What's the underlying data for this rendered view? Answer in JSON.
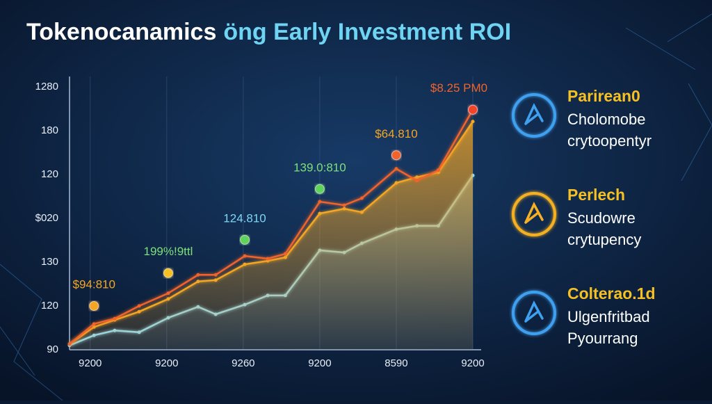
{
  "chart_data": {
    "type": "line",
    "title_parts": [
      "Tokenocanamics",
      "öng Early Investment ROI"
    ],
    "x": [
      0.73,
      1.05,
      1.32,
      1.64,
      2.02,
      2.41,
      2.64,
      3.02,
      3.32,
      3.55,
      4.0,
      4.32,
      4.55,
      5.0,
      5.27,
      5.55,
      6.0
    ],
    "series": [
      {
        "color": "#f0642c",
        "values": [
          0.13,
          0.59,
          0.71,
          1.0,
          1.29,
          1.71,
          1.71,
          2.14,
          2.08,
          2.19,
          3.38,
          3.3,
          3.46,
          4.13,
          3.86,
          4.1,
          5.48
        ]
      },
      {
        "color": "#f5a623",
        "area": true,
        "values": [
          0.13,
          0.52,
          0.68,
          0.87,
          1.16,
          1.56,
          1.59,
          1.95,
          2.03,
          2.11,
          3.11,
          3.22,
          3.14,
          3.81,
          3.94,
          4.05,
          5.21
        ]
      },
      {
        "color": "#8fdcf7",
        "area": true,
        "values": [
          0.1,
          0.33,
          0.44,
          0.4,
          0.73,
          0.98,
          0.81,
          1.03,
          1.24,
          1.24,
          2.27,
          2.22,
          2.43,
          2.75,
          2.83,
          2.83,
          3.98
        ]
      }
    ],
    "xlim": [
      0.73,
      6.0
    ],
    "ylim": [
      0,
      6
    ],
    "xticks": [
      {
        "value": 1,
        "label": "9200"
      },
      {
        "value": 2,
        "label": "9200"
      },
      {
        "value": 3,
        "label": "9260"
      },
      {
        "value": 4,
        "label": "9200"
      },
      {
        "value": 5,
        "label": "8590"
      },
      {
        "value": 6,
        "label": "9200"
      }
    ],
    "yticks": [
      {
        "value": 0,
        "label": "90"
      },
      {
        "value": 1,
        "label": "120"
      },
      {
        "value": 2,
        "label": "130"
      },
      {
        "value": 3,
        "label": "$020"
      },
      {
        "value": 4,
        "label": "120"
      },
      {
        "value": 5,
        "label": "180"
      },
      {
        "value": 6,
        "label": "1280"
      }
    ],
    "grid": "vertical",
    "annotations": [
      {
        "text": "$94:810",
        "x": 1.05,
        "y": 1.0,
        "color": "#f5a623",
        "dot": "#f5a623"
      },
      {
        "text": "199%!9ttl",
        "x": 2.02,
        "y": 1.75,
        "color": "#7ee07a",
        "dot": "#f5c023"
      },
      {
        "text": "124.810",
        "x": 3.02,
        "y": 2.51,
        "color": "#7fd6f5",
        "dot": "#5fd35a"
      },
      {
        "text": "139.0:810",
        "x": 4.0,
        "y": 3.67,
        "color": "#7ee07a",
        "dot": "#5fd35a"
      },
      {
        "text": "$64.810",
        "x": 5.0,
        "y": 4.44,
        "color": "#f5a623",
        "dot": "#f0642c"
      },
      {
        "text": "$8.25 PM0",
        "x": 6.0,
        "y": 5.48,
        "color": "#f0642c",
        "dot": "#f0442c"
      }
    ],
    "panel": [
      {
        "title": "Parirean0",
        "lines": [
          "Cholomobe",
          "crytoopentyr"
        ],
        "color": "#f5c023",
        "icon": "#3fa0f0"
      },
      {
        "title": "Perlech",
        "lines": [
          "Scudowre",
          "crytupency"
        ],
        "color": "#f5c023",
        "icon": "#f5b023"
      },
      {
        "title": "Colterao.1d",
        "lines": [
          "Ulgenfritbad",
          "Pyourrang"
        ],
        "color": "#f5c023",
        "icon": "#3fa0f0"
      }
    ]
  }
}
